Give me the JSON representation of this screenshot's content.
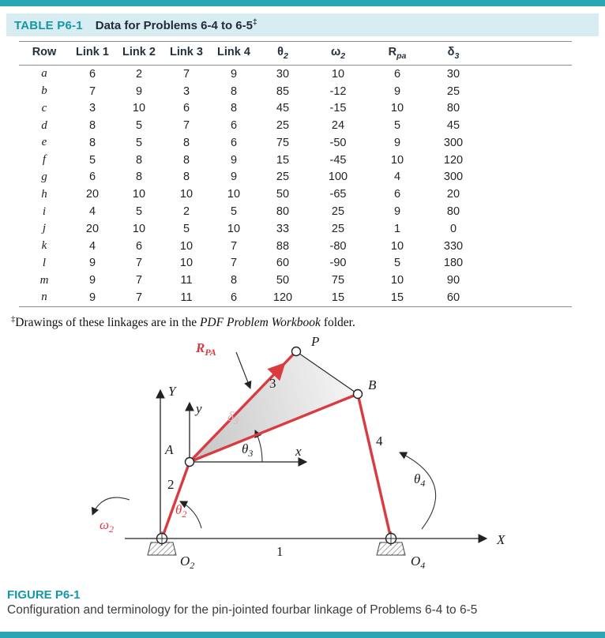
{
  "page": {
    "colors": {
      "accent_teal": "#1596a6",
      "strip_teal": "#2ba7b4",
      "titlebar_bg": "#d8edf2",
      "link_red": "#d93b40"
    }
  },
  "table": {
    "tag": "TABLE P6-1",
    "title": "Data for Problems 6-4 to 6-5",
    "dagger": "‡",
    "columns": [
      {
        "base": "Row",
        "sub": ""
      },
      {
        "base": "Link 1",
        "sub": ""
      },
      {
        "base": "Link 2",
        "sub": ""
      },
      {
        "base": "Link 3",
        "sub": ""
      },
      {
        "base": "Link 4",
        "sub": ""
      },
      {
        "base": "θ",
        "sub": "2"
      },
      {
        "base": "ω",
        "sub": "2"
      },
      {
        "base": "R",
        "sub": "pa"
      },
      {
        "base": "δ",
        "sub": "3"
      }
    ],
    "rows": [
      {
        "row": "a",
        "values": [
          "6",
          "2",
          "7",
          "9",
          "30",
          "10",
          "6",
          "30"
        ]
      },
      {
        "row": "b",
        "values": [
          "7",
          "9",
          "3",
          "8",
          "85",
          "-12",
          "9",
          "25"
        ]
      },
      {
        "row": "c",
        "values": [
          "3",
          "10",
          "6",
          "8",
          "45",
          "-15",
          "10",
          "80"
        ]
      },
      {
        "row": "d",
        "values": [
          "8",
          "5",
          "7",
          "6",
          "25",
          "24",
          "5",
          "45"
        ]
      },
      {
        "row": "e",
        "values": [
          "8",
          "5",
          "8",
          "6",
          "75",
          "-50",
          "9",
          "300"
        ]
      },
      {
        "row": "f",
        "values": [
          "5",
          "8",
          "8",
          "9",
          "15",
          "-45",
          "10",
          "120"
        ]
      },
      {
        "row": "g",
        "values": [
          "6",
          "8",
          "8",
          "9",
          "25",
          "100",
          "4",
          "300"
        ]
      },
      {
        "row": "h",
        "values": [
          "20",
          "10",
          "10",
          "10",
          "50",
          "-65",
          "6",
          "20"
        ]
      },
      {
        "row": "i",
        "values": [
          "4",
          "5",
          "2",
          "5",
          "80",
          "25",
          "9",
          "80"
        ]
      },
      {
        "row": "j",
        "values": [
          "20",
          "10",
          "5",
          "10",
          "33",
          "25",
          "1",
          "0"
        ]
      },
      {
        "row": "k",
        "values": [
          "4",
          "6",
          "10",
          "7",
          "88",
          "-80",
          "10",
          "330"
        ]
      },
      {
        "row": "l",
        "values": [
          "9",
          "7",
          "10",
          "7",
          "60",
          "-90",
          "5",
          "180"
        ]
      },
      {
        "row": "m",
        "values": [
          "9",
          "7",
          "11",
          "8",
          "50",
          "75",
          "10",
          "90"
        ]
      },
      {
        "row": "n",
        "values": [
          "9",
          "7",
          "11",
          "6",
          "120",
          "15",
          "15",
          "60"
        ]
      }
    ],
    "footnote": {
      "dagger": "‡",
      "pre": "Drawings of these linkages are in the ",
      "italic": "PDF Problem Workbook",
      "post": " folder."
    }
  },
  "figure": {
    "heading": "FIGURE P6-1",
    "caption": "Configuration and terminology for the pin-jointed fourbar linkage of Problems 6-4 to 6-5",
    "labels": {
      "r_pa": {
        "base": "R",
        "sub": "PA"
      },
      "p": "P",
      "b": "B",
      "a": "A",
      "axis_Y": "Y",
      "axis_y": "y",
      "axis_x": "x",
      "axis_X": "X",
      "link1": "1",
      "link2": "2",
      "link3": "3",
      "link4": "4",
      "theta2": {
        "base": "θ",
        "sub": "2"
      },
      "theta3": {
        "base": "θ",
        "sub": "3"
      },
      "theta4": {
        "base": "θ",
        "sub": "4"
      },
      "delta3": {
        "base": "δ",
        "sub": "3"
      },
      "omega2": {
        "base": "ω",
        "sub": "2"
      },
      "o2": {
        "base": "O",
        "sub": "2"
      },
      "o4": {
        "base": "O",
        "sub": "4"
      }
    }
  }
}
